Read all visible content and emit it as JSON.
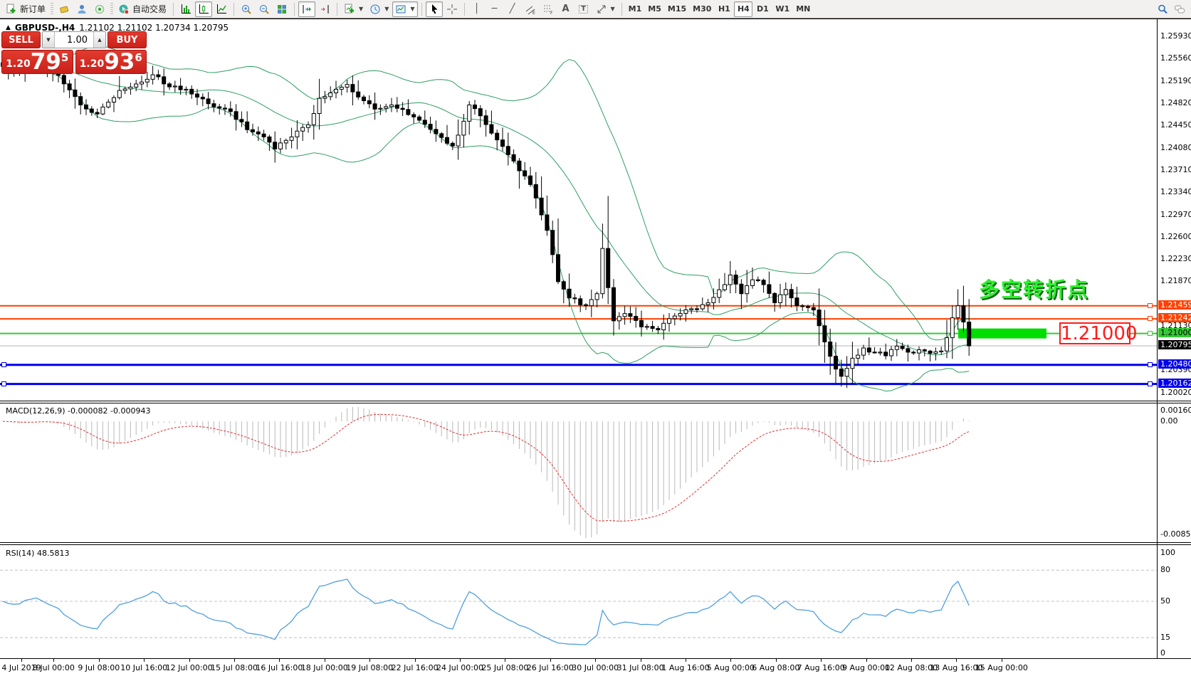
{
  "toolbar": {
    "new_order_label": "新订单",
    "autotrade_label": "自动交易",
    "timeframes": [
      "M1",
      "M5",
      "M15",
      "M30",
      "H1",
      "H4",
      "D1",
      "W1",
      "MN"
    ],
    "active_timeframe": "H4"
  },
  "chart": {
    "title": "GBPUSD-,H4",
    "ohlc": "1.21102 1.21102 1.20734 1.20795",
    "one_click": {
      "sell_label": "SELL",
      "buy_label": "BUY",
      "volume": "1.00",
      "sell_price_prefix": "1.20",
      "sell_price_big": "79",
      "sell_price_sup": "5",
      "buy_price_prefix": "1.20",
      "buy_price_big": "93",
      "buy_price_sup": "6"
    }
  },
  "annotations": {
    "turning_point": {
      "text": "多空转折点",
      "color": "#2eef2e"
    },
    "price_callout": {
      "text": "1.21000",
      "color": "#ff1a1a"
    },
    "highlight_rect": {
      "color": "#00dd00",
      "price": 1.21,
      "x_from": 1346,
      "x_to": 1470
    }
  },
  "chart_data": {
    "type": "candlestick",
    "symbol": "GBPUSD-",
    "timeframe": "H4",
    "bars_total": 175,
    "last_close": 1.20795,
    "price_axis": {
      "ylim": [
        1.1989,
        1.2621
      ],
      "ticks": [
        "1.25930",
        "1.25560",
        "1.25190",
        "1.24820",
        "1.24450",
        "1.24080",
        "1.23710",
        "1.23340",
        "1.22970",
        "1.22600",
        "1.22230",
        "1.21870",
        "1.21130",
        "1.20390",
        "1.20020"
      ]
    },
    "time_axis": {
      "labels": [
        "4 Jul 2019",
        "8 Jul 00:00",
        "9 Jul 08:00",
        "10 Jul 16:00",
        "12 Jul 00:00",
        "15 Jul 08:00",
        "16 Jul 16:00",
        "18 Jul 00:00",
        "19 Jul 08:00",
        "22 Jul 16:00",
        "24 Jul 00:00",
        "25 Jul 08:00",
        "26 Jul 16:00",
        "30 Jul 00:00",
        "31 Jul 08:00",
        "1 Aug 16:00",
        "5 Aug 00:00",
        "6 Aug 08:00",
        "7 Aug 16:00",
        "9 Aug 00:00",
        "12 Aug 08:00",
        "13 Aug 16:00",
        "15 Aug 00:00"
      ]
    },
    "price_path_anchors": [
      [
        0,
        1.2543
      ],
      [
        3,
        1.2536
      ],
      [
        6,
        1.2549
      ],
      [
        10,
        1.2528
      ],
      [
        14,
        1.2479
      ],
      [
        17,
        1.2464
      ],
      [
        21,
        1.2503
      ],
      [
        25,
        1.2517
      ],
      [
        27,
        1.2529
      ],
      [
        30,
        1.2509
      ],
      [
        33,
        1.2505
      ],
      [
        36,
        1.2489
      ],
      [
        38,
        1.2476
      ],
      [
        41,
        1.2468
      ],
      [
        44,
        1.2438
      ],
      [
        47,
        1.2426
      ],
      [
        49,
        1.2406
      ],
      [
        52,
        1.2426
      ],
      [
        55,
        1.2446
      ],
      [
        57,
        1.249
      ],
      [
        60,
        1.2505
      ],
      [
        62,
        1.2513
      ],
      [
        65,
        1.2486
      ],
      [
        67,
        1.2472
      ],
      [
        70,
        1.2479
      ],
      [
        73,
        1.2463
      ],
      [
        76,
        1.2447
      ],
      [
        79,
        1.2425
      ],
      [
        81,
        1.2411
      ],
      [
        83,
        1.2452
      ],
      [
        84,
        1.2479
      ],
      [
        86,
        1.2461
      ],
      [
        89,
        1.2421
      ],
      [
        92,
        1.2386
      ],
      [
        95,
        1.2347
      ],
      [
        98,
        1.2271
      ],
      [
        100,
        1.2186
      ],
      [
        102,
        1.2159
      ],
      [
        105,
        1.2146
      ],
      [
        107,
        1.2166
      ],
      [
        108,
        1.2241
      ],
      [
        109,
        1.2176
      ],
      [
        110,
        1.2121
      ],
      [
        112,
        1.2133
      ],
      [
        115,
        1.2111
      ],
      [
        118,
        1.2106
      ],
      [
        121,
        1.2129
      ],
      [
        124,
        1.2141
      ],
      [
        127,
        1.2151
      ],
      [
        130,
        1.2181
      ],
      [
        131,
        1.2197
      ],
      [
        133,
        1.2166
      ],
      [
        135,
        1.2189
      ],
      [
        137,
        1.2181
      ],
      [
        139,
        1.2151
      ],
      [
        141,
        1.2173
      ],
      [
        143,
        1.2146
      ],
      [
        146,
        1.2139
      ],
      [
        148,
        1.2086
      ],
      [
        150,
        1.2041
      ],
      [
        151,
        1.2029
      ],
      [
        153,
        1.2059
      ],
      [
        155,
        1.2076
      ],
      [
        157,
        1.2069
      ],
      [
        159,
        1.2063
      ],
      [
        161,
        1.2079
      ],
      [
        163,
        1.2069
      ],
      [
        165,
        1.2073
      ],
      [
        167,
        1.2067
      ],
      [
        169,
        1.2071
      ],
      [
        170,
        1.2093
      ],
      [
        171,
        1.2126
      ],
      [
        172,
        1.2146
      ],
      [
        173,
        1.2119
      ],
      [
        174,
        1.20795
      ]
    ],
    "hlines": [
      {
        "price": 1.21459,
        "label": "1.21459",
        "color": "#ff4000",
        "width": 2,
        "text_color": "#fff",
        "left_handle": false
      },
      {
        "price": 1.21242,
        "label": "1.21242",
        "color": "#ff4000",
        "width": 2,
        "text_color": "#fff",
        "left_handle": false
      },
      {
        "price": 1.21,
        "label": "1.21000",
        "color": "#33cc33",
        "width": 2,
        "text_color": "#000",
        "left_handle": false
      },
      {
        "price": 1.2048,
        "label": "1.20480",
        "color": "#0000ee",
        "width": 3,
        "text_color": "#fff",
        "left_handle": true
      },
      {
        "price": 1.20162,
        "label": "1.20162",
        "color": "#0000ee",
        "width": 3,
        "text_color": "#fff",
        "left_handle": true
      }
    ],
    "current_price": {
      "value": 1.20795,
      "label": "1.20795",
      "line_color": "#b4b4b4",
      "badge_bg": "#000"
    },
    "indicators": {
      "bollinger": {
        "period": 20,
        "deviation": 2,
        "color": "#2e9e63"
      },
      "macd": {
        "label": "MACD(12,26,9)",
        "values_text": "-0.000082 -0.000943",
        "fast": 12,
        "slow": 26,
        "signal": 9,
        "scale_top": "0.001607",
        "scale_zero": "0.00",
        "scale_bottom": "-0.008522",
        "histogram_color": "#b8b8b8",
        "signal_color": "#e03030"
      },
      "rsi": {
        "label": "RSI(14)",
        "value_text": "48.5813",
        "period": 14,
        "levels": [
          80,
          50,
          15
        ],
        "scale_top": "100",
        "scale_bottom": "0",
        "color": "#4f9fe0"
      }
    }
  }
}
